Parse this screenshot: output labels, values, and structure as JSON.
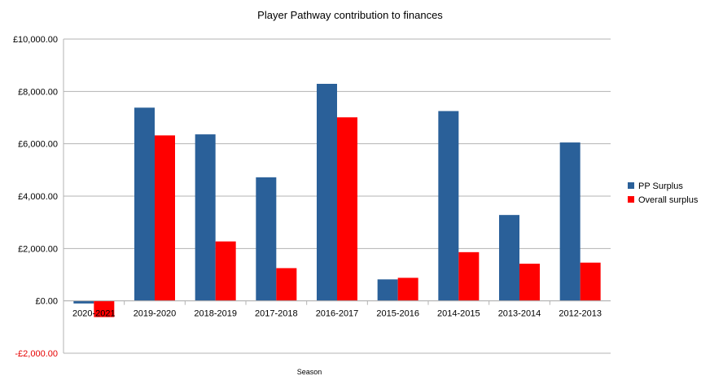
{
  "chart_data": {
    "type": "bar",
    "title": "Player Pathway contribution to finances",
    "xlabel": "Season",
    "ylabel": "",
    "categories": [
      "2020-2021",
      "2019-2020",
      "2018-2019",
      "2017-2018",
      "2016-2017",
      "2015-2016",
      "2014-2015",
      "2013-2014",
      "2012-2013"
    ],
    "series": [
      {
        "name": "PP Surplus",
        "color": "#2a6099",
        "values": [
          -100,
          7380,
          6360,
          4720,
          8290,
          820,
          7250,
          3280,
          6050
        ]
      },
      {
        "name": "Overall surplus",
        "color": "#ff0000",
        "values": [
          -620,
          6320,
          2270,
          1250,
          7010,
          880,
          1860,
          1420,
          1460
        ]
      }
    ],
    "ylim": [
      -2000,
      10000
    ],
    "yticks": [
      -2000,
      0,
      2000,
      4000,
      6000,
      8000,
      10000
    ],
    "ytick_labels": [
      "-£2,000.00",
      "£0.00",
      "£2,000.00",
      "£4,000.00",
      "£6,000.00",
      "£8,000.00",
      "£10,000.00"
    ],
    "negative_tick_color": "#e60000",
    "grid": true,
    "legend_position": "right"
  }
}
